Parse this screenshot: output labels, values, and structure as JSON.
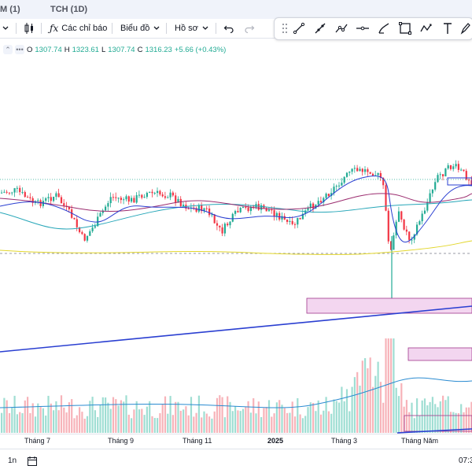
{
  "tabs": {
    "tab1": "M (1)",
    "tab2": "TCH (1D)"
  },
  "toolbar": {
    "indicators": "Các chỉ báo",
    "chart": "Biểu đồ",
    "profile": "Hồ sơ"
  },
  "legend": {
    "open_label": "O",
    "open": "1307.74",
    "high_label": "H",
    "high": "1323.61",
    "low_label": "L",
    "low": "1307.74",
    "close_label": "C",
    "close": "1316.23",
    "change": "+5.66 (+0.43%)"
  },
  "xaxis": {
    "m7": "Tháng 7",
    "m9": "Tháng 9",
    "m11": "Tháng 11",
    "y2025": "2025",
    "m3": "Tháng 3",
    "year": "Tháng Năm",
    "time": "07:3"
  },
  "bottom": {
    "interval": "1n"
  },
  "colors": {
    "up": "#22ab94",
    "down": "#f23645",
    "trend": "#2a3fd1",
    "zone": "#f3d6f0"
  },
  "chart_data": {
    "type": "candlestick",
    "symbol_legend": "O1307.74 H1323.61 L1307.74 C1316.23 +5.66 (+0.43%)"
  }
}
